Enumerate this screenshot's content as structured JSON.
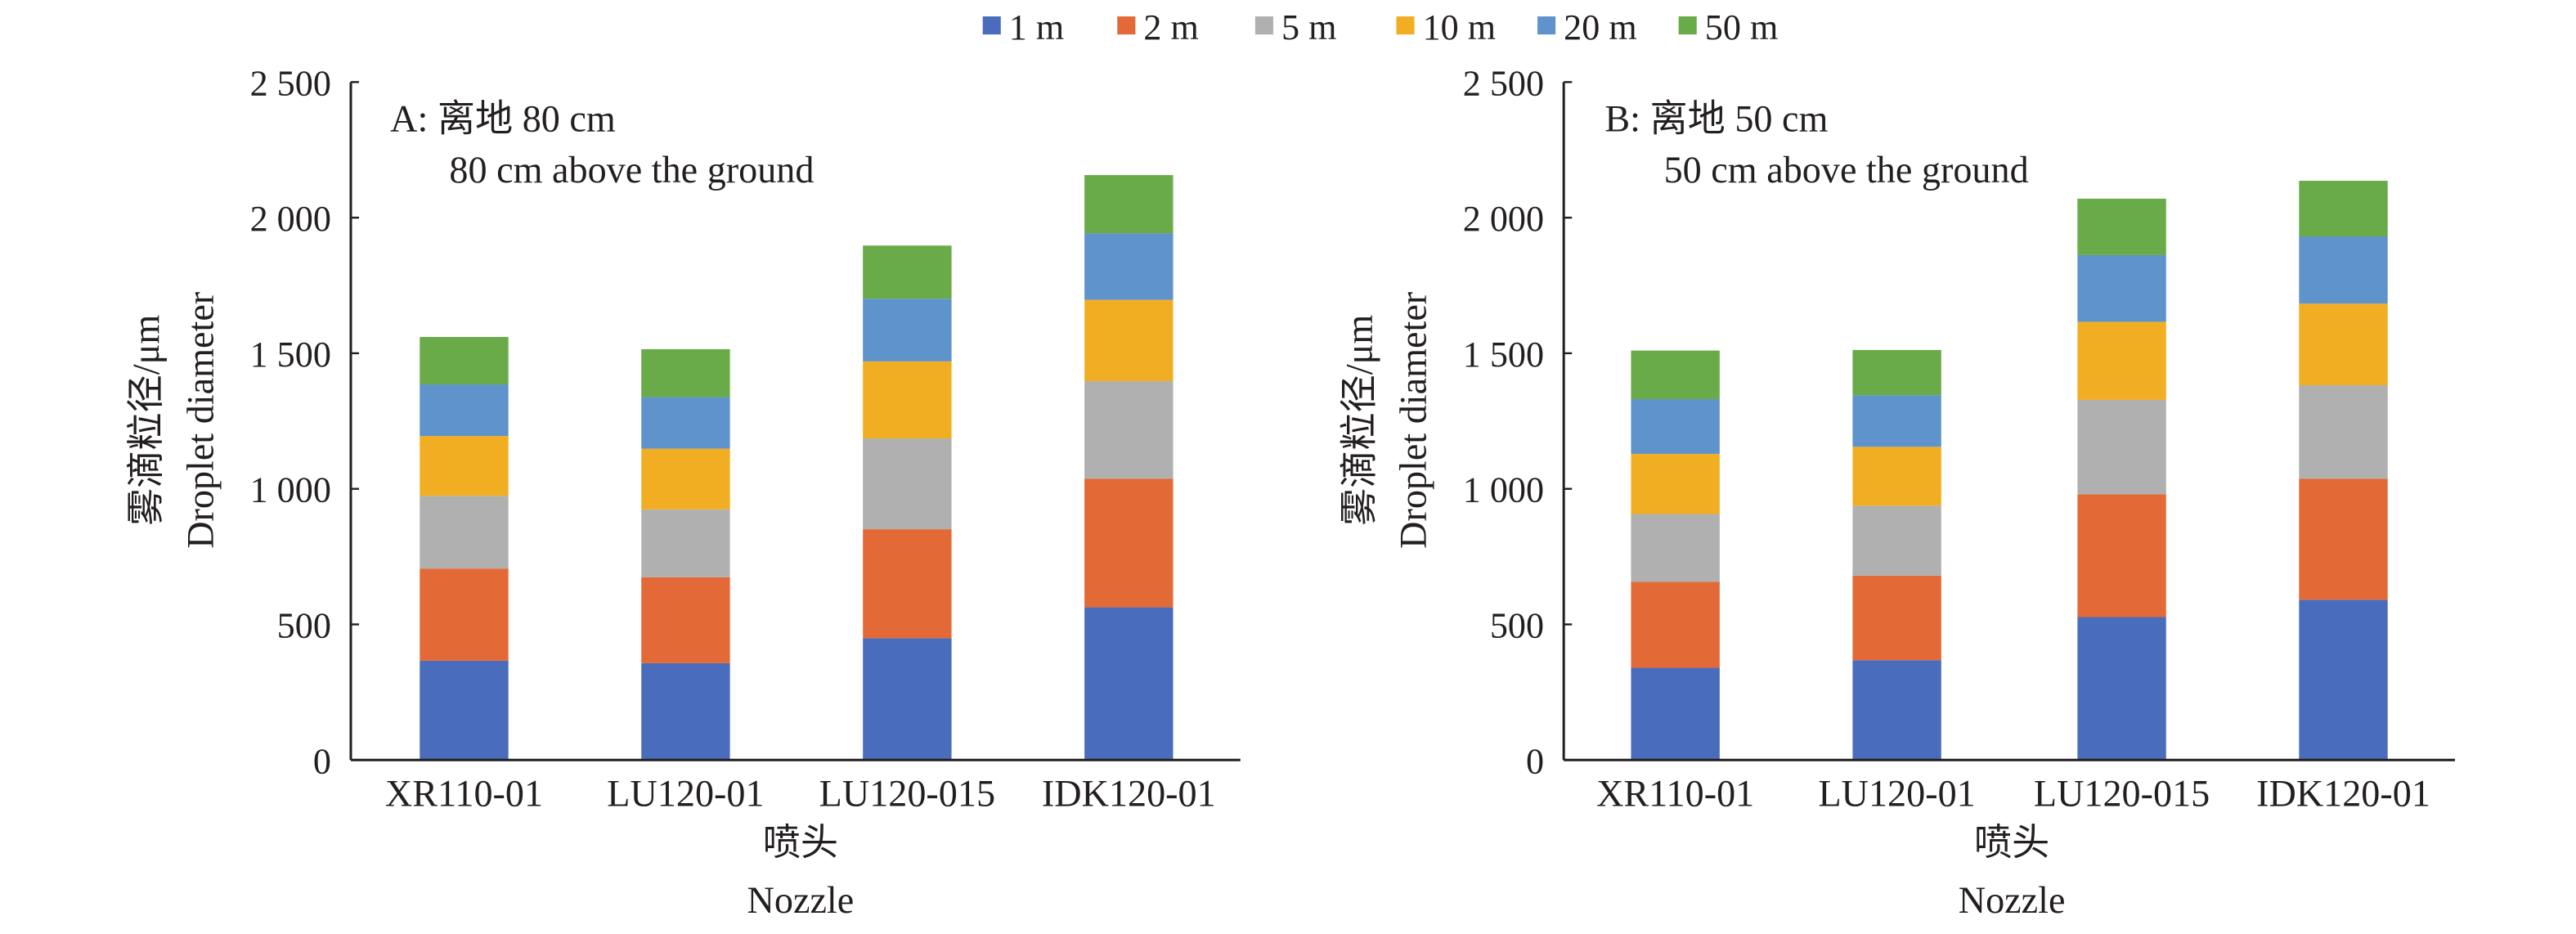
{
  "chart_data": [
    {
      "type": "bar",
      "stacked": true,
      "panel": "A",
      "annotation_line1": "A: 离地 80 cm",
      "annotation_line2": "80 cm above the ground",
      "xlabel_cn": "喷头",
      "xlabel_en": "Nozzle",
      "ylabel_cn": "雾滴粒径/μm",
      "ylabel_en": "Droplet diameter",
      "ylim": [
        0,
        2500
      ],
      "yticks": [
        0,
        500,
        1000,
        1500,
        2000,
        2500
      ],
      "ytick_labels": [
        "0",
        "500",
        "1 000",
        "1 500",
        "2 000",
        "2 500"
      ],
      "categories": [
        "XR110-01",
        "LU120-01",
        "LU120-015",
        "IDK120-01"
      ],
      "series": [
        {
          "name": "1 m",
          "values": [
            366,
            357,
            449,
            563
          ]
        },
        {
          "name": "2 m",
          "values": [
            340,
            317,
            402,
            474
          ]
        },
        {
          "name": "5 m",
          "values": [
            268,
            250,
            335,
            360
          ]
        },
        {
          "name": "10 m",
          "values": [
            221,
            224,
            284,
            300
          ]
        },
        {
          "name": "20 m",
          "values": [
            190,
            190,
            231,
            245
          ]
        },
        {
          "name": "50 m",
          "values": [
            175,
            177,
            196,
            215
          ]
        }
      ]
    },
    {
      "type": "bar",
      "stacked": true,
      "panel": "B",
      "annotation_line1": "B: 离地 50 cm",
      "annotation_line2": "50 cm above the ground",
      "xlabel_cn": "喷头",
      "xlabel_en": "Nozzle",
      "ylabel_cn": "雾滴粒径/μm",
      "ylabel_en": "Droplet diameter",
      "ylim": [
        0,
        2500
      ],
      "yticks": [
        0,
        500,
        1000,
        1500,
        2000,
        2500
      ],
      "ytick_labels": [
        "0",
        "500",
        "1 000",
        "1 500",
        "2 000",
        "2 500"
      ],
      "categories": [
        "XR110-01",
        "LU120-01",
        "LU120-015",
        "IDK120-01"
      ],
      "series": [
        {
          "name": "1 m",
          "values": [
            340,
            368,
            527,
            591
          ]
        },
        {
          "name": "2 m",
          "values": [
            317,
            312,
            453,
            446
          ]
        },
        {
          "name": "5 m",
          "values": [
            250,
            258,
            348,
            345
          ]
        },
        {
          "name": "10 m",
          "values": [
            222,
            217,
            288,
            301
          ]
        },
        {
          "name": "20 m",
          "values": [
            202,
            190,
            246,
            248
          ]
        },
        {
          "name": "50 m",
          "values": [
            179,
            167,
            208,
            205
          ]
        }
      ]
    }
  ],
  "legend": {
    "position": "top-center",
    "items": [
      {
        "label": "1 m",
        "color": "#4a6cbc"
      },
      {
        "label": "2 m",
        "color": "#e36936"
      },
      {
        "label": "5 m",
        "color": "#b0b0b0"
      },
      {
        "label": "10 m",
        "color": "#f2ae23"
      },
      {
        "label": "20 m",
        "color": "#5f93cb"
      },
      {
        "label": "50 m",
        "color": "#69ab48"
      }
    ]
  }
}
